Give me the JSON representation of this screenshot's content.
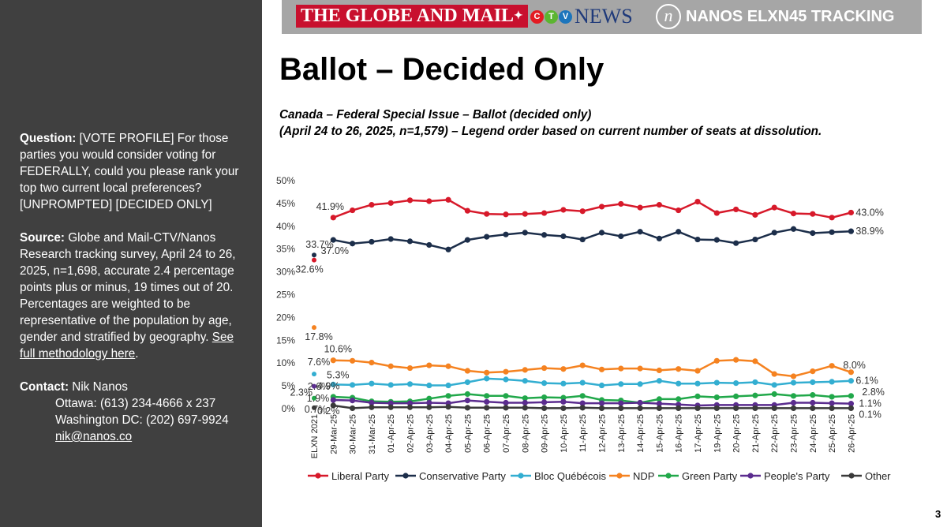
{
  "sidebar": {
    "question_label": "Question:",
    "question_text": " [VOTE PROFILE] For those parties you would consider voting for FEDERALLY, could you please rank your top two current local preferences? [UNPROMPTED] [DECIDED ONLY]",
    "source_label": "Source:",
    "source_text": " Globe and Mail-CTV/Nanos Research tracking survey, April 24 to 26, 2025, n=1,698, accurate 2.4 percentage points plus or minus, 19 times out of 20. Percentages are weighted to be representative of the population by age, gender and stratified by geography.",
    "methodology_link": "See full methodology here",
    "methodology_end": ".",
    "contact_label": "Contact:",
    "contact_name": " Nik Nanos",
    "ottawa": "Ottawa: (613) 234-4666 x 237",
    "washington": "Washington DC: (202) 697-9924",
    "email": "nik@nanos.co"
  },
  "banner": {
    "globe_text": "THE GLOBE AND MAIL",
    "ctv_letters": [
      "C",
      "T",
      "V"
    ],
    "news_text": "NEWS",
    "nanos_glyph": "n",
    "brand_label": "NANOS ELXN45 TRACKING"
  },
  "page_title": "Ballot – Decided Only",
  "subtitle_line1": "Canada – Federal Special Issue – Ballot (decided only)",
  "subtitle_line2": "(April 24 to 26, 2025, n=1,579) – Legend order based on current number of seats at dissolution.",
  "page_number": "3",
  "colors": {
    "sidebar_bg": "#404040",
    "banner_bg": "#a6a6a6",
    "globe_red": "#c8102e",
    "ctv_red": "#e31b23",
    "ctv_green": "#5cb531",
    "ctv_blue": "#1c75bc"
  },
  "chart_data": {
    "type": "line",
    "ylim": [
      0,
      50
    ],
    "yticks": [
      "0%",
      "5%",
      "10%",
      "15%",
      "20%",
      "25%",
      "30%",
      "35%",
      "40%",
      "45%",
      "50%"
    ],
    "categories": [
      "ELXN 2021",
      "29-Mar-25",
      "30-Mar-25",
      "31-Mar-25",
      "01-Apr-25",
      "02-Apr-25",
      "03-Apr-25",
      "04-Apr-25",
      "05-Apr-25",
      "06-Apr-25",
      "07-Apr-25",
      "08-Apr-25",
      "09-Apr-25",
      "10-Apr-25",
      "11-Apr-25",
      "12-Apr-25",
      "13-Apr-25",
      "14-Apr-25",
      "15-Apr-25",
      "16-Apr-25",
      "17-Apr-25",
      "19-Apr-25",
      "20-Apr-25",
      "21-Apr-25",
      "22-Apr-25",
      "23-Apr-25",
      "24-Apr-25",
      "25-Apr-25",
      "26-Apr-25"
    ],
    "legend_position": "bottom",
    "grid": false,
    "series": [
      {
        "name": "Liberal Party",
        "color": "#d7192a",
        "values": [
          32.6,
          41.9,
          43.5,
          44.7,
          45.1,
          45.7,
          45.5,
          45.8,
          43.4,
          42.7,
          42.6,
          42.7,
          42.9,
          43.6,
          43.3,
          44.3,
          44.9,
          44.1,
          44.7,
          43.5,
          45.4,
          42.9,
          43.7,
          42.5,
          44.1,
          42.8,
          42.7,
          41.9,
          43.0
        ],
        "labels": [
          [
            0,
            "32.6%"
          ],
          [
            1,
            "41.9%"
          ],
          [
            28,
            "43.0%"
          ]
        ]
      },
      {
        "name": "Conservative Party",
        "color": "#1c2e4a",
        "values": [
          33.7,
          37.0,
          36.2,
          36.6,
          37.2,
          36.7,
          35.9,
          34.9,
          37.0,
          37.7,
          38.2,
          38.6,
          38.1,
          37.8,
          37.1,
          38.6,
          37.8,
          38.8,
          37.3,
          38.8,
          37.1,
          37.0,
          36.3,
          37.1,
          38.6,
          39.4,
          38.5,
          38.7,
          38.9
        ],
        "labels": [
          [
            0,
            "33.7%"
          ],
          [
            1,
            "37.0%"
          ],
          [
            28,
            "38.9%"
          ]
        ]
      },
      {
        "name": "Bloc Québécois",
        "color": "#33aed1",
        "values": [
          7.6,
          5.3,
          5.2,
          5.5,
          5.2,
          5.4,
          5.1,
          5.1,
          5.8,
          6.6,
          6.4,
          6.1,
          5.6,
          5.5,
          5.7,
          5.1,
          5.4,
          5.4,
          6.1,
          5.5,
          5.5,
          5.7,
          5.6,
          5.8,
          5.2,
          5.7,
          5.8,
          5.9,
          6.1
        ],
        "labels": [
          [
            0,
            "7.6%"
          ],
          [
            1,
            "5.3%"
          ],
          [
            28,
            "6.1%"
          ]
        ]
      },
      {
        "name": "NDP",
        "color": "#f58220",
        "values": [
          17.8,
          10.6,
          10.5,
          10.1,
          9.3,
          8.9,
          9.5,
          9.3,
          8.3,
          7.9,
          8.1,
          8.5,
          8.9,
          8.7,
          9.5,
          8.6,
          8.8,
          8.8,
          8.4,
          8.7,
          8.3,
          10.5,
          10.7,
          10.4,
          7.6,
          7.1,
          8.2,
          9.4,
          8.0
        ],
        "labels": [
          [
            0,
            "17.8%"
          ],
          [
            1,
            "10.6%"
          ],
          [
            28,
            "8.0%"
          ]
        ]
      },
      {
        "name": "Green Party",
        "color": "#21a84a",
        "values": [
          2.3,
          2.6,
          2.4,
          1.6,
          1.5,
          1.6,
          2.2,
          2.8,
          3.2,
          2.8,
          2.8,
          2.3,
          2.5,
          2.4,
          2.8,
          1.9,
          1.8,
          1.3,
          2.1,
          2.1,
          2.7,
          2.5,
          2.7,
          2.9,
          3.2,
          2.8,
          3.0,
          2.6,
          2.8
        ],
        "labels": [
          [
            0,
            "2.3%"
          ],
          [
            1,
            "2.6%"
          ],
          [
            28,
            "2.8%"
          ]
        ]
      },
      {
        "name": "People's Party",
        "color": "#5b2c8f",
        "values": [
          4.9,
          1.9,
          1.8,
          1.3,
          1.2,
          1.2,
          1.3,
          1.2,
          1.8,
          1.5,
          1.3,
          1.3,
          1.4,
          1.5,
          1.2,
          1.2,
          1.2,
          1.3,
          1.1,
          0.9,
          0.7,
          0.8,
          0.8,
          0.8,
          0.8,
          1.3,
          1.3,
          1.2,
          1.1
        ],
        "labels": [
          [
            0,
            "4.9%"
          ],
          [
            1,
            "1.9%"
          ],
          [
            28,
            "1.1%"
          ]
        ]
      },
      {
        "name": "Other",
        "color": "#3a3a3a",
        "values": [
          0.2,
          0.7,
          0.1,
          0.3,
          0.3,
          0.3,
          0.3,
          0.4,
          0.2,
          0.2,
          0.2,
          0.2,
          0.1,
          0.1,
          0.2,
          0.1,
          0.1,
          0.1,
          0.1,
          0.1,
          0.1,
          0.1,
          0.1,
          0.1,
          0.1,
          0.1,
          0.1,
          0.1,
          0.1
        ],
        "labels": [
          [
            0,
            "0.2%"
          ],
          [
            1,
            "0.7%"
          ],
          [
            28,
            "0.1%"
          ]
        ]
      }
    ]
  }
}
